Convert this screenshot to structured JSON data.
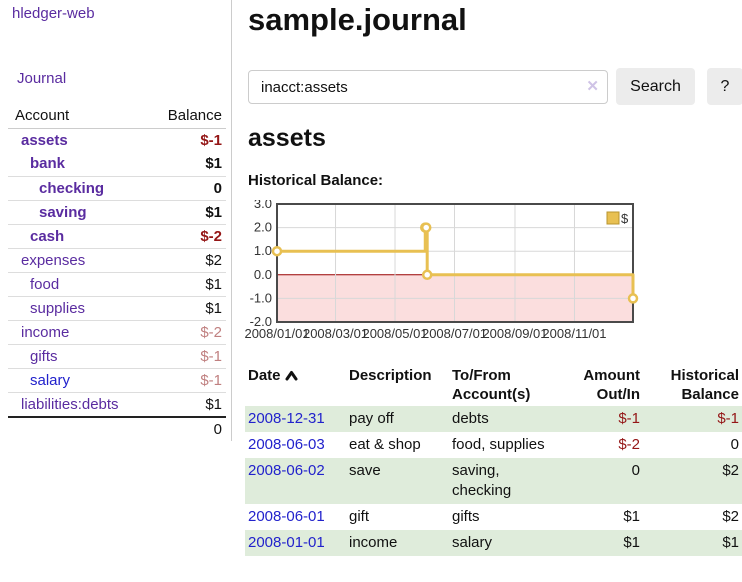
{
  "app": {
    "title": "hledger-web"
  },
  "colors": {
    "link_purple": "#5a2ca0",
    "link_blue": "#2222cc",
    "negative_strong": "#941616",
    "negative_soft": "#c08080",
    "row_green": "#dfecdb",
    "chart_line_gold": "#e8c052",
    "chart_negative_fill": "#fbdede",
    "chart_zero_line": "#990000"
  },
  "sidebar": {
    "journal_link": "Journal",
    "account_header": "Account",
    "balance_header": "Balance",
    "rows": [
      {
        "name": "assets",
        "balance": "$-1",
        "indent": 1,
        "bold": true,
        "neg": "strong"
      },
      {
        "name": "bank",
        "balance": "$1",
        "indent": 2,
        "bold": true,
        "neg": "none"
      },
      {
        "name": "checking",
        "balance": "0",
        "indent": 3,
        "bold": true,
        "neg": "none"
      },
      {
        "name": "saving",
        "balance": "$1",
        "indent": 3,
        "bold": true,
        "neg": "none"
      },
      {
        "name": "cash",
        "balance": "$-2",
        "indent": 2,
        "bold": true,
        "neg": "strong"
      },
      {
        "name": "expenses",
        "balance": "$2",
        "indent": 1,
        "bold": false,
        "neg": "none"
      },
      {
        "name": "food",
        "balance": "$1",
        "indent": 2,
        "bold": false,
        "neg": "none"
      },
      {
        "name": "supplies",
        "balance": "$1",
        "indent": 2,
        "bold": false,
        "neg": "none"
      },
      {
        "name": "income",
        "balance": "$-2",
        "indent": 1,
        "bold": false,
        "neg": "soft"
      },
      {
        "name": "gifts",
        "balance": "$-1",
        "indent": 2,
        "bold": false,
        "neg": "soft"
      },
      {
        "name": "salary",
        "balance": "$-1",
        "indent": 2,
        "bold": false,
        "neg": "soft",
        "blue": true
      },
      {
        "name": "liabilities:debts",
        "balance": "$1",
        "indent": 1,
        "bold": false,
        "neg": "none"
      }
    ],
    "total": "0"
  },
  "header": {
    "title": "sample.journal"
  },
  "search": {
    "value": "inacct:assets",
    "clear_label": "✕",
    "button_label": "Search",
    "help_label": "?"
  },
  "account_page": {
    "title": "assets",
    "chart_label": "Historical Balance:"
  },
  "chart_data": {
    "type": "line",
    "step": true,
    "title": "Historical Balance",
    "legend": "$",
    "legend_position": "top-right",
    "x_range": [
      "2008-01-01",
      "2008-12-31"
    ],
    "ylim": [
      -2,
      3
    ],
    "y_ticks": [
      "3.0",
      "2.0",
      "1.0",
      "0.0",
      "-1.0",
      "-2.0"
    ],
    "x_ticks": [
      "2008/01/01",
      "2008/03/01",
      "2008/05/01",
      "2008/07/01",
      "2008/09/01",
      "2008/11/01"
    ],
    "grid": true,
    "series": [
      {
        "name": "$",
        "points": [
          {
            "x": "2008-01-01",
            "y": 1
          },
          {
            "x": "2008-06-01",
            "y": 2
          },
          {
            "x": "2008-06-02",
            "y": 2
          },
          {
            "x": "2008-06-03",
            "y": 0
          },
          {
            "x": "2008-12-31",
            "y": -1
          }
        ]
      }
    ]
  },
  "register": {
    "headers": {
      "date": "Date",
      "description": "Description",
      "accounts": "To/From Account(s)",
      "amount": "Amount Out/In",
      "balance": "Historical Balance"
    },
    "sort": "ascending",
    "rows": [
      {
        "date": "2008-12-31",
        "description": "pay off",
        "accounts": "debts",
        "amount": "$-1",
        "amount_neg": true,
        "balance": "$-1",
        "balance_neg": true
      },
      {
        "date": "2008-06-03",
        "description": "eat & shop",
        "accounts": "food, supplies",
        "amount": "$-2",
        "amount_neg": true,
        "balance": "0",
        "balance_neg": false
      },
      {
        "date": "2008-06-02",
        "description": "save",
        "accounts": "saving, checking",
        "amount": "0",
        "amount_neg": false,
        "balance": "$2",
        "balance_neg": false
      },
      {
        "date": "2008-06-01",
        "description": "gift",
        "accounts": "gifts",
        "amount": "$1",
        "amount_neg": false,
        "balance": "$2",
        "balance_neg": false
      },
      {
        "date": "2008-01-01",
        "description": "income",
        "accounts": "salary",
        "amount": "$1",
        "amount_neg": false,
        "balance": "$1",
        "balance_neg": false
      }
    ]
  }
}
